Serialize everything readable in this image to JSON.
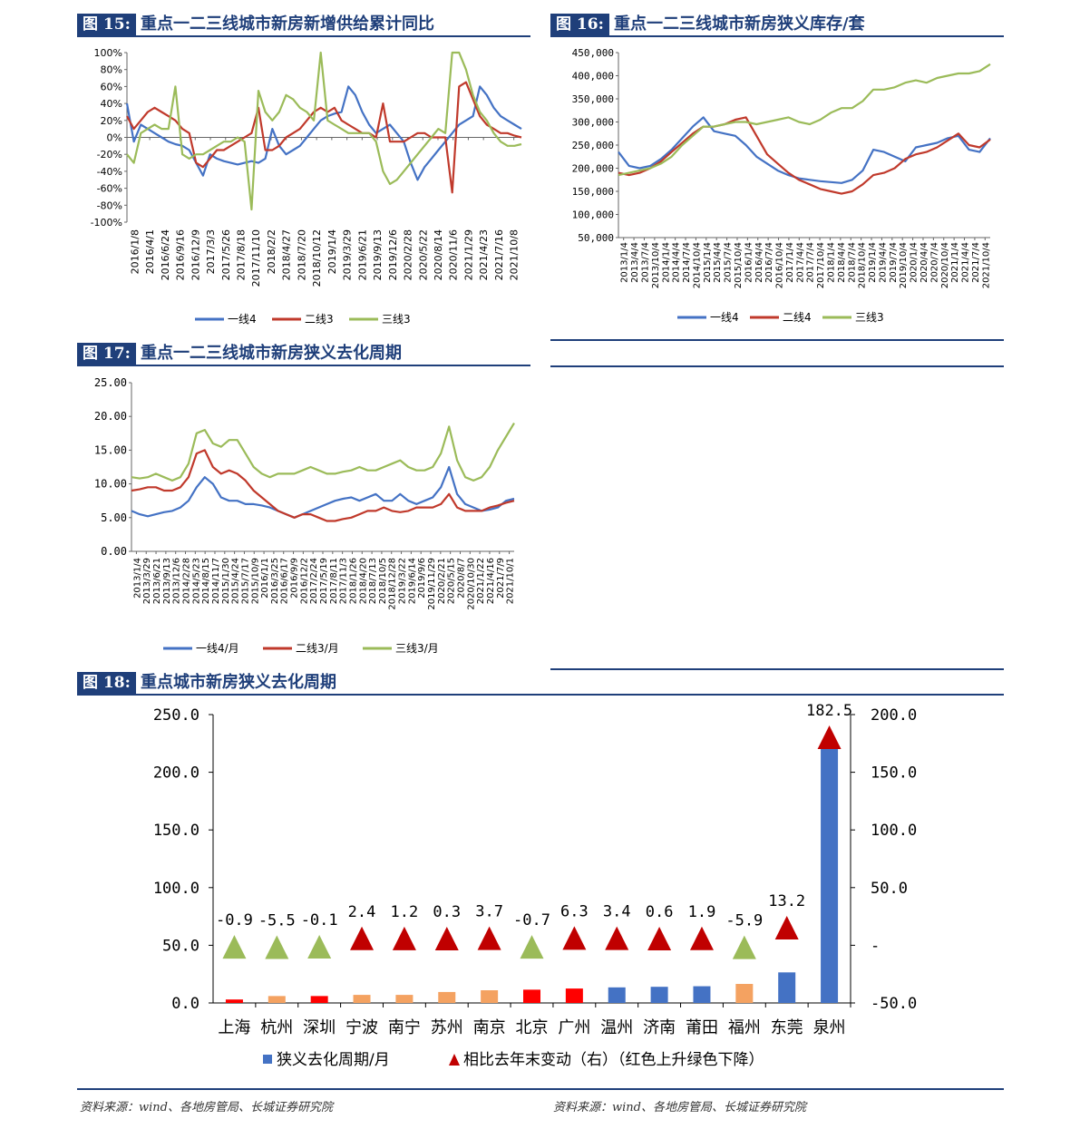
{
  "panels": {
    "p15": {
      "num": "图 15:",
      "title": "重点一二三线城市新房新增供给累计同比"
    },
    "p16": {
      "num": "图 16:",
      "title": "重点一二三线城市新房狭义库存/套"
    },
    "p17": {
      "num": "图 17:",
      "title": "重点一二三线城市新房狭义去化周期"
    },
    "p18": {
      "num": "图 18:",
      "title": "重点城市新房狭义去化周期"
    }
  },
  "sources": {
    "left": "资料来源：wind、各地房管局、长城证券研究院",
    "right": "资料来源：wind、各地房管局、长城证券研究院"
  },
  "colors": {
    "blue": "#4472c4",
    "red": "#c0392b",
    "green": "#9bbb59",
    "orange": "#f4a261",
    "darkred": "#c00000",
    "navy": "#1f3f7a"
  },
  "chart_data": [
    {
      "id": "c15",
      "type": "line",
      "ylim": [
        -100,
        100
      ],
      "yticks": [
        "100%",
        "80%",
        "60%",
        "40%",
        "20%",
        "0%",
        "-20%",
        "-40%",
        "-60%",
        "-80%",
        "-100%"
      ],
      "xticks": [
        "2016/1/8",
        "2016/4/1",
        "2016/6/24",
        "2016/9/16",
        "2016/12/9",
        "2017/3/3",
        "2017/5/26",
        "2017/8/18",
        "2017/11/10",
        "2018/2/2",
        "2018/4/27",
        "2018/7/20",
        "2018/10/12",
        "2019/1/4",
        "2019/3/29",
        "2019/6/21",
        "2019/9/13",
        "2019/12/6",
        "2020/2/28",
        "2020/5/22",
        "2020/8/14",
        "2020/11/6",
        "2021/1/29",
        "2021/4/23",
        "2021/7/16",
        "2021/10/8"
      ],
      "series": [
        {
          "name": "一线4",
          "color": "#4472c4",
          "values": [
            40,
            -5,
            15,
            10,
            5,
            0,
            -5,
            -8,
            -10,
            -15,
            -30,
            -45,
            -20,
            -25,
            -28,
            -30,
            -32,
            -30,
            -28,
            -30,
            -25,
            10,
            -10,
            -20,
            -15,
            -10,
            0,
            10,
            20,
            25,
            28,
            30,
            60,
            50,
            30,
            15,
            5,
            10,
            15,
            5,
            -5,
            -30,
            -50,
            -35,
            -25,
            -15,
            -5,
            5,
            15,
            20,
            25,
            60,
            50,
            35,
            25,
            20,
            15,
            10
          ]
        },
        {
          "name": "二线3",
          "color": "#c0392b",
          "values": [
            25,
            10,
            20,
            30,
            35,
            30,
            25,
            20,
            10,
            5,
            -30,
            -35,
            -25,
            -15,
            -15,
            -10,
            -5,
            0,
            5,
            35,
            -15,
            -15,
            -10,
            0,
            5,
            10,
            20,
            30,
            35,
            30,
            35,
            20,
            15,
            10,
            5,
            5,
            0,
            40,
            -5,
            -5,
            -5,
            0,
            5,
            5,
            0,
            0,
            0,
            -65,
            60,
            65,
            45,
            25,
            15,
            10,
            5,
            5,
            2,
            0
          ]
        },
        {
          "name": "三线3",
          "color": "#9bbb59",
          "values": [
            -20,
            -30,
            5,
            10,
            15,
            10,
            10,
            60,
            -20,
            -25,
            -20,
            -20,
            -15,
            -10,
            -5,
            -5,
            0,
            -5,
            -85,
            55,
            30,
            20,
            30,
            50,
            45,
            35,
            30,
            20,
            100,
            20,
            15,
            10,
            5,
            5,
            5,
            5,
            -5,
            -40,
            -55,
            -50,
            -40,
            -30,
            -20,
            -10,
            0,
            10,
            5,
            100,
            100,
            80,
            50,
            30,
            20,
            5,
            -5,
            -10,
            -10,
            -8
          ]
        }
      ]
    },
    {
      "id": "c16",
      "type": "line",
      "ylim": [
        50000,
        450000
      ],
      "yticks": [
        "450,000",
        "400,000",
        "350,000",
        "300,000",
        "250,000",
        "200,000",
        "150,000",
        "100,000",
        "50,000"
      ],
      "xticks": [
        "2013/1/4",
        "2013/4/4",
        "2013/7/4",
        "2013/10/4",
        "2014/1/4",
        "2014/4/4",
        "2014/7/4",
        "2014/10/4",
        "2015/1/4",
        "2015/4/4",
        "2015/7/4",
        "2015/10/4",
        "2016/1/4",
        "2016/4/4",
        "2016/7/4",
        "2016/10/4",
        "2017/1/4",
        "2017/4/4",
        "2017/7/4",
        "2017/10/4",
        "2018/1/4",
        "2018/4/4",
        "2018/7/4",
        "2018/10/4",
        "2019/1/4",
        "2019/4/4",
        "2019/7/4",
        "2019/10/4",
        "2020/1/4",
        "2020/4/4",
        "2020/7/4",
        "2020/10/4",
        "2021/1/4",
        "2021/4/4",
        "2021/7/4",
        "2021/10/4"
      ],
      "series": [
        {
          "name": "一线4",
          "color": "#4472c4",
          "values": [
            235000,
            205000,
            200000,
            205000,
            220000,
            240000,
            265000,
            290000,
            310000,
            280000,
            275000,
            270000,
            250000,
            225000,
            210000,
            195000,
            185000,
            178000,
            175000,
            172000,
            170000,
            168000,
            175000,
            195000,
            240000,
            235000,
            225000,
            215000,
            245000,
            250000,
            255000,
            265000,
            270000,
            240000,
            235000,
            265000
          ]
        },
        {
          "name": "二线4",
          "color": "#c0392b",
          "values": [
            190000,
            185000,
            190000,
            200000,
            215000,
            235000,
            255000,
            275000,
            290000,
            290000,
            295000,
            305000,
            310000,
            270000,
            230000,
            210000,
            190000,
            175000,
            165000,
            155000,
            150000,
            145000,
            150000,
            165000,
            185000,
            190000,
            200000,
            220000,
            230000,
            235000,
            245000,
            260000,
            275000,
            250000,
            245000,
            262000
          ]
        },
        {
          "name": "三线3",
          "color": "#9bbb59",
          "values": [
            185000,
            190000,
            195000,
            200000,
            210000,
            225000,
            250000,
            270000,
            290000,
            290000,
            295000,
            300000,
            300000,
            295000,
            300000,
            305000,
            310000,
            300000,
            295000,
            305000,
            320000,
            330000,
            330000,
            345000,
            370000,
            370000,
            375000,
            385000,
            390000,
            385000,
            395000,
            400000,
            405000,
            405000,
            410000,
            425000
          ]
        }
      ]
    },
    {
      "id": "c17",
      "type": "line",
      "ylim": [
        0,
        25
      ],
      "yticks": [
        "25.00",
        "20.00",
        "15.00",
        "10.00",
        "5.00",
        "0.00"
      ],
      "xticks": [
        "2013/1/4",
        "2013/3/29",
        "2013/6/21",
        "2013/9/13",
        "2013/12/6",
        "2014/2/28",
        "2014/5/23",
        "2014/8/15",
        "2014/11/7",
        "2015/1/30",
        "2015/4/24",
        "2015/7/17",
        "2015/10/9",
        "2016/1/1",
        "2016/3/25",
        "2016/6/17",
        "2016/9/9",
        "2016/12/2",
        "2017/2/24",
        "2017/5/19",
        "2017/8/11",
        "2017/11/3",
        "2018/1/26",
        "2018/4/20",
        "2018/7/13",
        "2018/10/5",
        "2018/12/28",
        "2019/3/22",
        "2019/6/14",
        "2019/9/6",
        "2019/11/29",
        "2020/2/21",
        "2020/5/15",
        "2020/8/7",
        "2020/10/30",
        "2021/1/22",
        "2021/4/16",
        "2021/7/9",
        "2021/10/1"
      ],
      "series": [
        {
          "name": "一线4/月",
          "color": "#4472c4",
          "values": [
            6.0,
            5.5,
            5.2,
            5.5,
            5.8,
            6.0,
            6.5,
            7.5,
            9.5,
            11.0,
            10.0,
            8.0,
            7.5,
            7.5,
            7.0,
            7.0,
            6.8,
            6.5,
            6.0,
            5.5,
            5.0,
            5.5,
            6.0,
            6.5,
            7.0,
            7.5,
            7.8,
            8.0,
            7.5,
            8.0,
            8.5,
            7.5,
            7.5,
            8.5,
            7.5,
            7.0,
            7.5,
            8.0,
            9.5,
            12.5,
            8.5,
            7.0,
            6.5,
            6.0,
            6.2,
            6.5,
            7.5,
            7.8
          ]
        },
        {
          "name": "二线3/月",
          "color": "#c0392b",
          "values": [
            9.0,
            9.2,
            9.5,
            9.5,
            9.0,
            9.0,
            9.5,
            11.0,
            14.5,
            15.0,
            12.5,
            11.5,
            12.0,
            11.5,
            10.5,
            9.0,
            8.0,
            7.0,
            6.0,
            5.5,
            5.0,
            5.5,
            5.5,
            5.0,
            4.5,
            4.5,
            4.8,
            5.0,
            5.5,
            6.0,
            6.0,
            6.5,
            6.0,
            5.8,
            6.0,
            6.5,
            6.5,
            6.5,
            7.0,
            8.5,
            6.5,
            6.0,
            6.0,
            6.0,
            6.5,
            6.8,
            7.2,
            7.5
          ]
        },
        {
          "name": "三线3/月",
          "color": "#9bbb59",
          "values": [
            11.0,
            10.8,
            11.0,
            11.5,
            11.0,
            10.5,
            11.0,
            13.0,
            17.5,
            18.0,
            16.0,
            15.5,
            16.5,
            16.5,
            14.5,
            12.5,
            11.5,
            11.0,
            11.5,
            11.5,
            11.5,
            12.0,
            12.5,
            12.0,
            11.5,
            11.5,
            11.8,
            12.0,
            12.5,
            12.0,
            12.0,
            12.5,
            13.0,
            13.5,
            12.5,
            12.0,
            12.0,
            12.5,
            14.5,
            18.5,
            13.5,
            11.0,
            10.5,
            11.0,
            12.5,
            15.0,
            17.0,
            19.0
          ]
        }
      ]
    },
    {
      "id": "c18",
      "type": "bar",
      "ylim": [
        0,
        250
      ],
      "ylim_right": [
        -50,
        200
      ],
      "yticks_left": [
        "250.0",
        "200.0",
        "150.0",
        "100.0",
        "50.0",
        "0.0"
      ],
      "yticks_right": [
        "200.0",
        "150.0",
        "100.0",
        "50.0",
        "-",
        "-50.0"
      ],
      "categories": [
        "上海",
        "杭州",
        "深圳",
        "宁波",
        "南宁",
        "苏州",
        "南京",
        "北京",
        "广州",
        "温州",
        "济南",
        "莆田",
        "福州",
        "东莞",
        "泉州"
      ],
      "bar_values": [
        3.0,
        6.0,
        6.0,
        7.0,
        7.0,
        9.5,
        11.0,
        11.5,
        12.5,
        13.5,
        14.0,
        14.5,
        16.5,
        26.5,
        225.0
      ],
      "bar_colors": [
        "#ff0000",
        "#f4a261",
        "#ff0000",
        "#f4a261",
        "#f4a261",
        "#f4a261",
        "#f4a261",
        "#ff0000",
        "#ff0000",
        "#4472c4",
        "#4472c4",
        "#4472c4",
        "#f4a261",
        "#4472c4",
        "#4472c4"
      ],
      "change_values": [
        -0.9,
        -5.5,
        -0.1,
        2.4,
        1.2,
        0.3,
        3.7,
        -0.7,
        6.3,
        3.4,
        0.6,
        1.9,
        -5.9,
        13.2,
        182.5
      ],
      "change_labels": [
        "-0.9",
        "-5.5",
        "-0.1",
        "2.4",
        "1.2",
        "0.3",
        "3.7",
        "-0.7",
        "6.3",
        "3.4",
        "0.6",
        "1.9",
        "-5.9",
        "13.2",
        "182.5"
      ],
      "legend": {
        "bar": "狭义去化周期/月",
        "marker": "相比去年末变动（右）（红色上升绿色下降）"
      }
    }
  ]
}
